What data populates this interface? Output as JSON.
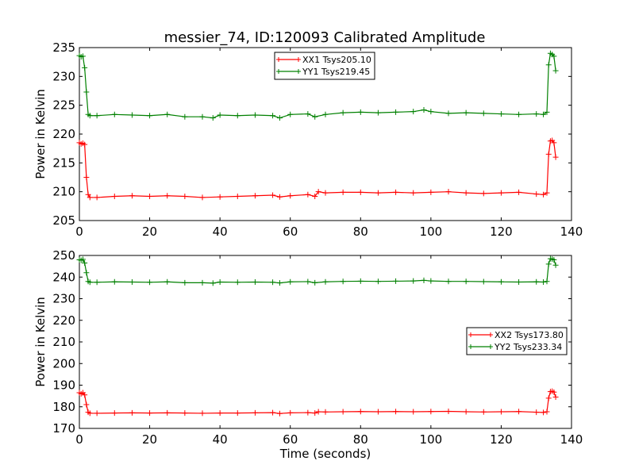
{
  "figure": {
    "title": "messier_74, ID:120093 Calibrated Amplitude"
  },
  "colors": {
    "xx": "#ff0000",
    "yy": "#008000",
    "axes": "#000000",
    "background": "#ffffff"
  },
  "chart_data": [
    {
      "type": "line",
      "title": "messier_74, ID:120093 Calibrated Amplitude",
      "xlabel": "",
      "ylabel": "Power in Kelvin",
      "xlim": [
        0,
        140
      ],
      "ylim": [
        205,
        235
      ],
      "xticks": [
        0,
        20,
        40,
        60,
        80,
        100,
        120,
        140
      ],
      "yticks": [
        205,
        210,
        215,
        220,
        225,
        230,
        235
      ],
      "grid": false,
      "legend": "top-center",
      "series": [
        {
          "name": "XX1 Tsys205.10",
          "color": "#ff0000",
          "marker": "plus",
          "x": [
            0,
            0.5,
            1,
            1.5,
            2,
            2.5,
            3,
            5,
            10,
            15,
            20,
            25,
            30,
            35,
            40,
            45,
            50,
            55,
            57,
            60,
            65,
            67,
            68,
            70,
            75,
            80,
            85,
            90,
            95,
            100,
            105,
            110,
            115,
            120,
            125,
            130,
            132,
            133,
            133.5,
            134,
            134.5,
            135,
            135.5
          ],
          "y": [
            218.5,
            218.3,
            218.4,
            218.2,
            212.5,
            209.5,
            209.0,
            209.0,
            209.2,
            209.3,
            209.2,
            209.3,
            209.2,
            209.0,
            209.1,
            209.2,
            209.3,
            209.4,
            209.1,
            209.3,
            209.5,
            209.2,
            210.0,
            209.8,
            209.9,
            209.9,
            209.8,
            209.9,
            209.8,
            209.9,
            210.0,
            209.8,
            209.7,
            209.8,
            209.9,
            209.6,
            209.5,
            209.8,
            216.5,
            218.8,
            218.9,
            218.5,
            216.0
          ]
        },
        {
          "name": "YY1 Tsys219.45",
          "color": "#008000",
          "marker": "plus",
          "x": [
            0,
            0.5,
            1,
            1.5,
            2,
            2.5,
            3,
            5,
            10,
            15,
            20,
            25,
            30,
            35,
            38,
            40,
            45,
            50,
            55,
            57,
            60,
            65,
            67,
            70,
            75,
            80,
            85,
            90,
            95,
            98,
            100,
            105,
            110,
            115,
            120,
            125,
            130,
            132,
            133,
            133.5,
            134,
            134.5,
            135,
            135.5
          ],
          "y": [
            233.6,
            233.4,
            233.5,
            231.5,
            227.3,
            223.4,
            223.2,
            223.2,
            223.4,
            223.3,
            223.2,
            223.4,
            223.0,
            223.0,
            222.8,
            223.3,
            223.2,
            223.3,
            223.2,
            222.8,
            223.4,
            223.5,
            223.0,
            223.4,
            223.7,
            223.8,
            223.7,
            223.8,
            223.9,
            224.2,
            223.9,
            223.6,
            223.7,
            223.6,
            223.5,
            223.4,
            223.5,
            223.4,
            223.8,
            232.0,
            234.0,
            233.8,
            233.5,
            231.0
          ]
        }
      ]
    },
    {
      "type": "line",
      "title": "",
      "xlabel": "Time (seconds)",
      "ylabel": "Power in Kelvin",
      "xlim": [
        0,
        140
      ],
      "ylim": [
        170,
        250
      ],
      "xticks": [
        0,
        20,
        40,
        60,
        80,
        100,
        120,
        140
      ],
      "yticks": [
        170,
        180,
        190,
        200,
        210,
        220,
        230,
        240,
        250
      ],
      "grid": false,
      "legend": "center-right",
      "series": [
        {
          "name": "XX2 Tsys173.80",
          "color": "#ff0000",
          "marker": "plus",
          "x": [
            0,
            0.5,
            1,
            1.5,
            2,
            2.5,
            3,
            5,
            10,
            15,
            20,
            25,
            30,
            35,
            40,
            45,
            50,
            55,
            57,
            60,
            65,
            67,
            68,
            70,
            75,
            80,
            85,
            90,
            95,
            100,
            105,
            110,
            115,
            120,
            125,
            130,
            132,
            133,
            133.5,
            134,
            134.5,
            135,
            135.5
          ],
          "y": [
            186.5,
            186.0,
            186.5,
            185.5,
            181.0,
            177.5,
            177.0,
            177.0,
            177.1,
            177.2,
            177.1,
            177.2,
            177.1,
            177.0,
            177.1,
            177.1,
            177.2,
            177.3,
            176.9,
            177.2,
            177.3,
            177.1,
            177.7,
            177.6,
            177.7,
            177.8,
            177.7,
            177.8,
            177.7,
            177.8,
            177.9,
            177.7,
            177.6,
            177.7,
            177.8,
            177.5,
            177.4,
            177.7,
            184.0,
            187.0,
            187.2,
            186.8,
            184.5
          ]
        },
        {
          "name": "YY2 Tsys233.34",
          "color": "#008000",
          "marker": "plus",
          "x": [
            0,
            0.5,
            1,
            1.5,
            2,
            2.5,
            3,
            5,
            10,
            15,
            20,
            25,
            30,
            35,
            38,
            40,
            45,
            50,
            55,
            57,
            60,
            65,
            67,
            70,
            75,
            80,
            85,
            90,
            95,
            98,
            100,
            105,
            110,
            115,
            120,
            125,
            130,
            132,
            133,
            133.5,
            134,
            134.5,
            135,
            135.5
          ],
          "y": [
            248.0,
            247.8,
            248.2,
            246.5,
            242.0,
            238.0,
            237.6,
            237.6,
            237.8,
            237.7,
            237.6,
            237.8,
            237.4,
            237.4,
            237.2,
            237.7,
            237.6,
            237.7,
            237.6,
            237.3,
            237.8,
            237.9,
            237.4,
            237.8,
            238.0,
            238.1,
            238.0,
            238.1,
            238.2,
            238.5,
            238.2,
            238.0,
            238.0,
            237.9,
            237.8,
            237.7,
            237.8,
            237.7,
            238.0,
            246.0,
            248.5,
            248.3,
            248.0,
            245.5
          ]
        }
      ]
    }
  ]
}
